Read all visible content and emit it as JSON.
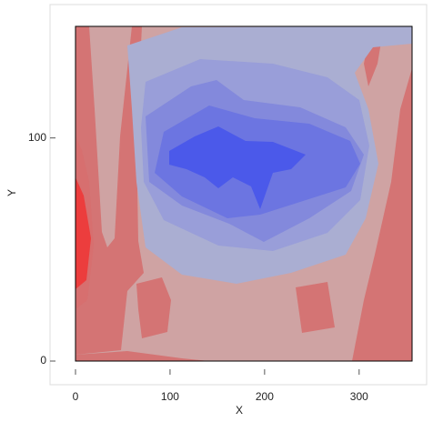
{
  "chart_data": {
    "type": "contour",
    "x_label": "X",
    "y_label": "Y",
    "xlim": [
      0,
      356
    ],
    "ylim": [
      0,
      150
    ],
    "xticks": [
      0,
      100,
      200,
      300
    ],
    "yticks": [
      0,
      100
    ],
    "level_colors": [
      "#cfa3a3",
      "#d47474",
      "#ff1010",
      "#d96a6a",
      "#aaaed2",
      "#999ed9",
      "#8389dc",
      "#6c75e1",
      "#4b59ea"
    ]
  }
}
